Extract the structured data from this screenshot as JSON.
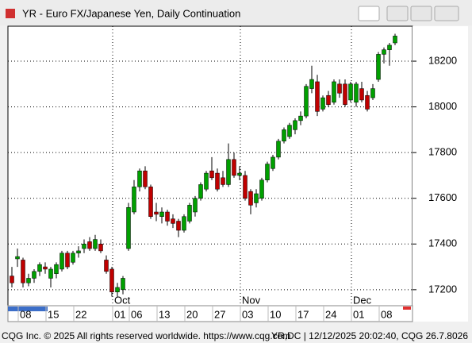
{
  "chart_data": {
    "type": "candlestick",
    "title": "YR - Euro FX/Japanese Yen, Daily Continuation",
    "categories": [
      "08",
      null,
      null,
      null,
      null,
      "15",
      null,
      null,
      null,
      null,
      "22",
      null,
      null,
      null,
      null,
      null,
      null,
      "01",
      null,
      null,
      "06",
      null,
      null,
      null,
      null,
      "13",
      null,
      null,
      null,
      null,
      "20",
      null,
      null,
      null,
      null,
      "27",
      null,
      null,
      null,
      null,
      "03",
      null,
      null,
      null,
      null,
      "10",
      null,
      null,
      null,
      null,
      "17",
      null,
      null,
      null,
      null,
      "24",
      null,
      null,
      null,
      null,
      "01",
      null,
      null,
      null,
      null,
      "08",
      null,
      null,
      null,
      null
    ],
    "month_labels": [
      null,
      null,
      null,
      null,
      null,
      null,
      null,
      null,
      null,
      null,
      null,
      null,
      null,
      null,
      null,
      null,
      null,
      "Oct",
      null,
      null,
      null,
      null,
      null,
      null,
      null,
      null,
      null,
      null,
      null,
      null,
      null,
      null,
      null,
      null,
      null,
      null,
      null,
      null,
      null,
      null,
      "Nov",
      null,
      null,
      null,
      null,
      null,
      null,
      null,
      null,
      null,
      null,
      null,
      null,
      null,
      null,
      null,
      null,
      null,
      null,
      null,
      "Dec",
      null,
      null,
      null,
      null,
      null,
      null,
      null,
      null,
      null
    ],
    "open": [
      17260,
      17335,
      17330,
      17230,
      17250,
      17280,
      17300,
      17250,
      17270,
      17290,
      17360,
      17320,
      17360,
      17380,
      17410,
      17380,
      17400,
      17330,
      17290,
      17190,
      17200,
      17380,
      17540,
      17650,
      17720,
      17650,
      17540,
      17520,
      17540,
      17510,
      17500,
      17460,
      17500,
      17540,
      17600,
      17640,
      17720,
      17710,
      17690,
      17660,
      17770,
      17700,
      17700,
      17630,
      17580,
      17600,
      17680,
      17730,
      17780,
      17850,
      17870,
      17900,
      17940,
      17960,
      18080,
      18110,
      17990,
      18050,
      18020,
      18100,
      18100,
      18030,
      18020,
      18080,
      18050,
      18040,
      18120,
      18230,
      18250,
      18280
    ],
    "high": [
      17300,
      17380,
      17340,
      17270,
      17290,
      17320,
      17320,
      17300,
      17320,
      17370,
      17370,
      17370,
      17390,
      17420,
      17430,
      17440,
      17420,
      17350,
      17300,
      17230,
      17260,
      17580,
      17680,
      17730,
      17740,
      17660,
      17580,
      17560,
      17550,
      17530,
      17510,
      17530,
      17580,
      17610,
      17670,
      17720,
      17780,
      17730,
      17720,
      17840,
      17800,
      17740,
      17720,
      17640,
      17640,
      17690,
      17760,
      17790,
      17860,
      17910,
      17930,
      17950,
      17980,
      18100,
      18180,
      18140,
      18050,
      18070,
      18120,
      18120,
      18120,
      18110,
      18110,
      18110,
      18070,
      18100,
      18240,
      18260,
      18280,
      18320
    ],
    "low": [
      17210,
      17300,
      17210,
      17215,
      17230,
      17260,
      17270,
      17210,
      17250,
      17280,
      17290,
      17310,
      17340,
      17360,
      17370,
      17370,
      17360,
      17270,
      17170,
      17170,
      17180,
      17370,
      17530,
      17630,
      17640,
      17510,
      17500,
      17490,
      17480,
      17470,
      17430,
      17450,
      17490,
      17520,
      17590,
      17630,
      17680,
      17630,
      17650,
      17650,
      17690,
      17680,
      17590,
      17530,
      17560,
      17590,
      17670,
      17720,
      17770,
      17840,
      17860,
      17880,
      17920,
      17950,
      18060,
      17960,
      17980,
      18000,
      18010,
      18040,
      18000,
      18020,
      18000,
      18020,
      17980,
      18030,
      18110,
      18190,
      18180,
      18270
    ],
    "close": [
      17230,
      17345,
      17230,
      17250,
      17280,
      17310,
      17290,
      17290,
      17310,
      17360,
      17300,
      17360,
      17370,
      17400,
      17380,
      17420,
      17370,
      17280,
      17190,
      17210,
      17250,
      17560,
      17650,
      17720,
      17650,
      17520,
      17530,
      17540,
      17500,
      17490,
      17460,
      17520,
      17570,
      17600,
      17660,
      17710,
      17690,
      17640,
      17660,
      17770,
      17700,
      17710,
      17600,
      17570,
      17620,
      17680,
      17750,
      17780,
      17850,
      17900,
      17920,
      17940,
      17960,
      18090,
      18120,
      17980,
      18040,
      18010,
      18110,
      18060,
      18010,
      18100,
      18100,
      18030,
      17990,
      18080,
      18230,
      18250,
      18270,
      18310
    ],
    "up_color": "#00a000",
    "down_color": "#c00000",
    "ylim": [
      17130,
      18353
    ],
    "yticks": [
      17200,
      17400,
      17600,
      17800,
      18000,
      18200
    ],
    "grid": true
  },
  "window": {
    "footer_left": "CQG Inc. © 2025 All rights reserved worldwide. https://www.cqg.com",
    "footer_right": "YR,DC | 12/12/2025 20:02:40, CQG 26.7.8026"
  }
}
